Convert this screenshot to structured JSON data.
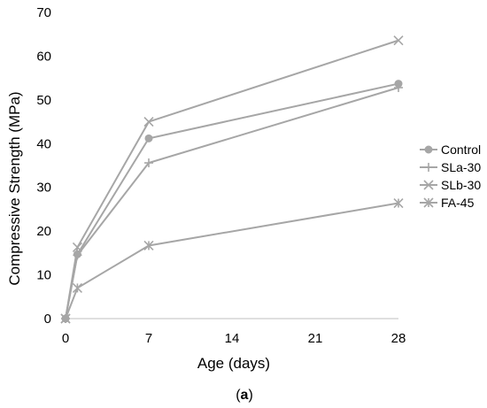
{
  "colors": {
    "series": "#a6a6a6",
    "axis": "#bfbfbf",
    "text": "#000000"
  },
  "chart_data": {
    "type": "line",
    "title": "",
    "xlabel": "Age (days)",
    "ylabel": "Compressive Strength (MPa)",
    "xlim": [
      0,
      28
    ],
    "ylim": [
      0,
      70
    ],
    "xticks": [
      0,
      7,
      14,
      21,
      28
    ],
    "yticks": [
      0,
      10,
      20,
      30,
      40,
      50,
      60,
      70
    ],
    "grid": false,
    "legend_position": "right",
    "x": [
      0,
      1,
      7,
      28
    ],
    "series": [
      {
        "name": "Control",
        "marker": "circle",
        "values": [
          0,
          14.7,
          41.2,
          53.7
        ]
      },
      {
        "name": "SLa-30",
        "marker": "plus",
        "values": [
          0,
          14.5,
          35.6,
          52.8
        ]
      },
      {
        "name": "SLb-30",
        "marker": "x",
        "values": [
          0,
          16.3,
          45.0,
          63.6
        ]
      },
      {
        "name": "FA-45",
        "marker": "star",
        "values": [
          0,
          7.0,
          16.7,
          26.4
        ]
      }
    ]
  },
  "caption": {
    "open": "(",
    "letter": "a",
    "close": ")"
  }
}
